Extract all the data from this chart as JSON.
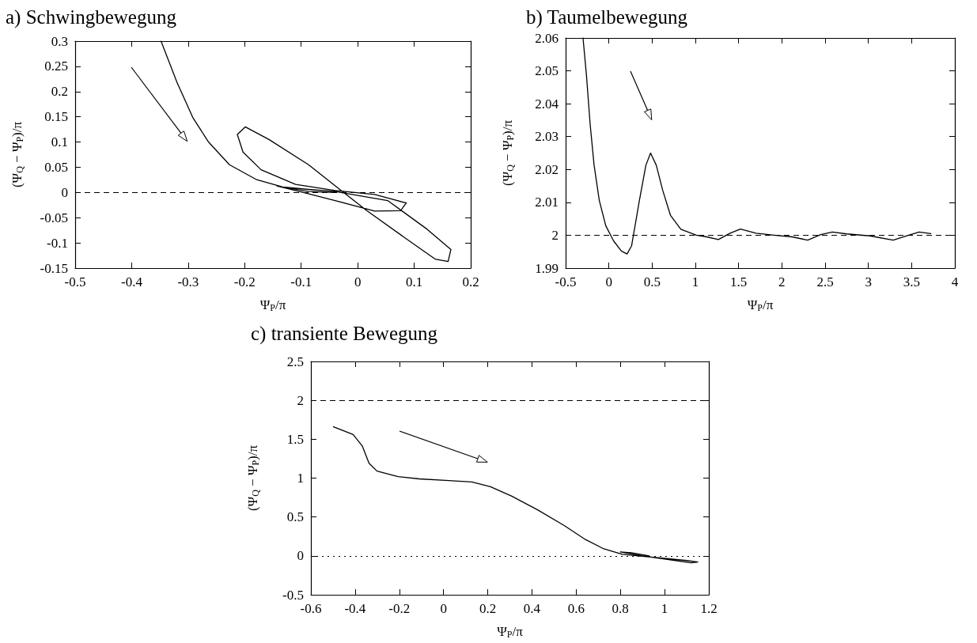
{
  "chart_data": [
    {
      "type": "line",
      "title": "a) Schwingbewegung",
      "xlabel": "Ψ$_{P}$/π",
      "ylabel": "(Ψ$_{Q}$ − Ψ$_{P}$)/π",
      "color": "#000000",
      "marker": "none",
      "line_style": "solid",
      "x": [
        -0.348,
        -0.32,
        -0.292,
        -0.264,
        -0.227,
        -0.18,
        -0.133,
        -0.087,
        -0.04,
        0.053,
        0.123,
        0.165,
        0.16,
        0.137,
        0.1,
        0.016,
        -0.026,
        -0.087,
        -0.157,
        -0.199,
        -0.213,
        -0.203,
        -0.171,
        -0.11,
        -0.04,
        0.03,
        0.086,
        0.076,
        0.03,
        -0.04,
        -0.096,
        -0.143,
        -0.087,
        -0.04
      ],
      "values": [
        0.3,
        0.219,
        0.149,
        0.1,
        0.055,
        0.026,
        0.011,
        0.006,
        0.002,
        -0.016,
        -0.073,
        -0.113,
        -0.137,
        -0.132,
        -0.103,
        -0.036,
        0.001,
        0.055,
        0.105,
        0.13,
        0.115,
        0.08,
        0.045,
        0.016,
        0.004,
        -0.004,
        -0.021,
        -0.036,
        -0.037,
        -0.016,
        0,
        0.013,
        0.002,
        0
      ],
      "xlim": [
        -0.5,
        0.2
      ],
      "xticks": [
        -0.5,
        -0.4,
        -0.3,
        -0.2,
        -0.1,
        0,
        0.1,
        0.2
      ],
      "ylim": [
        -0.15,
        0.3
      ],
      "yticks": [
        -0.15,
        -0.1,
        -0.05,
        0,
        0.05,
        0.1,
        0.15,
        0.2,
        0.25,
        0.3
      ],
      "ref_lines": [
        {
          "axis": "y",
          "value": 0,
          "line_style": "dashed"
        }
      ]
    },
    {
      "type": "line",
      "title": "b) Taumelbewegung",
      "xlabel": "Ψ$_{P}$/π",
      "ylabel": "(Ψ$_{Q}$ − Ψ$_{P}$)/π",
      "color": "#000000",
      "marker": "none",
      "line_style": "solid",
      "x": [
        -0.299,
        -0.26,
        -0.216,
        -0.171,
        -0.111,
        -0.036,
        0.054,
        0.144,
        0.21,
        0.263,
        0.353,
        0.428,
        0.482,
        0.548,
        0.623,
        0.713,
        0.832,
        1.012,
        1.132,
        1.266,
        1.401,
        1.521,
        1.701,
        1.91,
        2.12,
        2.299,
        2.449,
        2.584,
        2.749,
        3.018,
        3.287,
        3.437,
        3.587,
        3.722
      ],
      "values": [
        2.06,
        2.0489,
        2.0336,
        2.0213,
        2.0106,
        2.0029,
        1.9983,
        1.9952,
        1.9943,
        1.9968,
        2.0106,
        2.0213,
        2.025,
        2.0213,
        2.0136,
        2.006,
        2.0018,
        2.0,
        1.9995,
        1.9987,
        2.0006,
        2.0019,
        2.0006,
        2.0,
        1.9995,
        1.9985,
        2.0002,
        2.001,
        2.0004,
        1.9998,
        1.9985,
        1.9998,
        2.001,
        2.0005
      ],
      "xlim": [
        -0.5,
        4
      ],
      "xticks": [
        -0.5,
        0,
        0.5,
        1,
        1.5,
        2,
        2.5,
        3,
        3.5,
        4
      ],
      "ylim": [
        1.99,
        2.06
      ],
      "yticks": [
        1.99,
        2,
        2.01,
        2.02,
        2.03,
        2.04,
        2.05,
        2.06
      ],
      "ref_lines": [
        {
          "axis": "y",
          "value": 2,
          "line_style": "dashed"
        }
      ]
    },
    {
      "type": "line",
      "title": "c) transiente Bewegung",
      "xlabel": "Ψ$_{P}$/π",
      "ylabel": "(Ψ$_{Q}$ − Ψ$_{P}$)/π",
      "color": "#000000",
      "marker": "none",
      "line_style": "solid",
      "x": [
        -0.498,
        -0.409,
        -0.367,
        -0.337,
        -0.301,
        -0.206,
        -0.11,
        0.009,
        0.128,
        0.212,
        0.307,
        0.427,
        0.546,
        0.642,
        0.725,
        0.809,
        0.9,
        1.0,
        1.1,
        1.15,
        1.12,
        1.0,
        0.9,
        0.82,
        0.8,
        0.85,
        0.93
      ],
      "values": [
        1.66,
        1.56,
        1.41,
        1.19,
        1.09,
        1.02,
        0.99,
        0.97,
        0.95,
        0.89,
        0.77,
        0.59,
        0.39,
        0.21,
        0.09,
        0.02,
        -0.005,
        -0.03,
        -0.06,
        -0.08,
        -0.09,
        -0.04,
        0,
        0.04,
        0.05,
        0.04,
        0
      ],
      "xlim": [
        -0.6,
        1.2
      ],
      "xticks": [
        -0.6,
        -0.4,
        -0.2,
        0,
        0.2,
        0.4,
        0.6,
        0.8,
        1,
        1.2
      ],
      "ylim": [
        -0.5,
        2.5
      ],
      "yticks": [
        -0.5,
        0,
        0.5,
        1,
        1.5,
        2,
        2.5
      ],
      "ref_lines": [
        {
          "axis": "y",
          "value": 2,
          "line_style": "dashed"
        },
        {
          "axis": "y",
          "value": 0,
          "line_style": "dotted"
        }
      ]
    }
  ]
}
